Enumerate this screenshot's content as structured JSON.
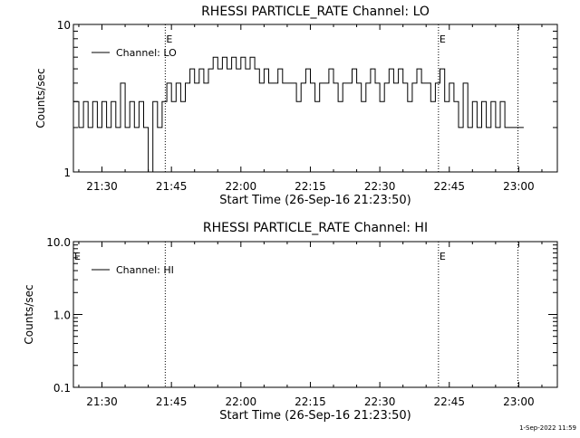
{
  "footer": {
    "timestamp": "1-Sep-2022 11:59"
  },
  "chart_data": [
    {
      "type": "line",
      "title": "RHESSI PARTICLE_RATE Channel: LO",
      "xlabel": "Start Time (26-Sep-16 21:23:50)",
      "ylabel": "Counts/sec",
      "yscale": "log",
      "ylim": [
        1,
        10
      ],
      "ytick_labels": [
        "1",
        "10"
      ],
      "xlim": [
        "21:23:50",
        "23:08:20"
      ],
      "xtick_labels": [
        "21:30",
        "21:45",
        "22:00",
        "22:15",
        "22:30",
        "22:45",
        "23:00"
      ],
      "legend_label": "Channel: LO",
      "grid": false,
      "event_markers": [
        {
          "time": "21:43:40",
          "label": "E"
        },
        {
          "time": "22:42:40",
          "label": "E"
        },
        {
          "time": "22:59:50",
          "label": ""
        }
      ],
      "series": [
        {
          "points": [
            [
              "21:23:50",
              3
            ],
            [
              "21:25:00",
              2
            ],
            [
              "21:26:00",
              3
            ],
            [
              "21:27:00",
              2
            ],
            [
              "21:28:00",
              3
            ],
            [
              "21:29:00",
              2
            ],
            [
              "21:30:00",
              3
            ],
            [
              "21:31:00",
              2
            ],
            [
              "21:32:00",
              3
            ],
            [
              "21:33:00",
              2
            ],
            [
              "21:34:00",
              4
            ],
            [
              "21:35:00",
              2
            ],
            [
              "21:36:00",
              3
            ],
            [
              "21:37:00",
              2
            ],
            [
              "21:38:00",
              3
            ],
            [
              "21:39:00",
              2
            ],
            [
              "21:40:00",
              1
            ],
            [
              "21:41:00",
              3
            ],
            [
              "21:42:00",
              2
            ],
            [
              "21:43:00",
              3
            ],
            [
              "21:44:00",
              4
            ],
            [
              "21:45:00",
              3
            ],
            [
              "21:46:00",
              4
            ],
            [
              "21:47:00",
              3
            ],
            [
              "21:48:00",
              4
            ],
            [
              "21:49:00",
              5
            ],
            [
              "21:50:00",
              4
            ],
            [
              "21:51:00",
              5
            ],
            [
              "21:52:00",
              4
            ],
            [
              "21:53:00",
              5
            ],
            [
              "21:54:00",
              6
            ],
            [
              "21:55:00",
              5
            ],
            [
              "21:56:00",
              6
            ],
            [
              "21:57:00",
              5
            ],
            [
              "21:58:00",
              6
            ],
            [
              "21:59:00",
              5
            ],
            [
              "22:00:00",
              6
            ],
            [
              "22:01:00",
              5
            ],
            [
              "22:02:00",
              6
            ],
            [
              "22:03:00",
              5
            ],
            [
              "22:04:00",
              4
            ],
            [
              "22:05:00",
              5
            ],
            [
              "22:06:00",
              4
            ],
            [
              "22:07:00",
              4
            ],
            [
              "22:08:00",
              5
            ],
            [
              "22:09:00",
              4
            ],
            [
              "22:10:00",
              4
            ],
            [
              "22:11:00",
              4
            ],
            [
              "22:12:00",
              3
            ],
            [
              "22:13:00",
              4
            ],
            [
              "22:14:00",
              5
            ],
            [
              "22:15:00",
              4
            ],
            [
              "22:16:00",
              3
            ],
            [
              "22:17:00",
              4
            ],
            [
              "22:18:00",
              4
            ],
            [
              "22:19:00",
              5
            ],
            [
              "22:20:00",
              4
            ],
            [
              "22:21:00",
              3
            ],
            [
              "22:22:00",
              4
            ],
            [
              "22:23:00",
              4
            ],
            [
              "22:24:00",
              5
            ],
            [
              "22:25:00",
              4
            ],
            [
              "22:26:00",
              3
            ],
            [
              "22:27:00",
              4
            ],
            [
              "22:28:00",
              5
            ],
            [
              "22:29:00",
              4
            ],
            [
              "22:30:00",
              3
            ],
            [
              "22:31:00",
              4
            ],
            [
              "22:32:00",
              5
            ],
            [
              "22:33:00",
              4
            ],
            [
              "22:34:00",
              5
            ],
            [
              "22:35:00",
              4
            ],
            [
              "22:36:00",
              3
            ],
            [
              "22:37:00",
              4
            ],
            [
              "22:38:00",
              5
            ],
            [
              "22:39:00",
              4
            ],
            [
              "22:40:00",
              4
            ],
            [
              "22:41:00",
              3
            ],
            [
              "22:42:00",
              4
            ],
            [
              "22:43:00",
              5
            ],
            [
              "22:44:00",
              3
            ],
            [
              "22:45:00",
              4
            ],
            [
              "22:46:00",
              3
            ],
            [
              "22:47:00",
              2
            ],
            [
              "22:48:00",
              4
            ],
            [
              "22:49:00",
              2
            ],
            [
              "22:50:00",
              3
            ],
            [
              "22:51:00",
              2
            ],
            [
              "22:52:00",
              3
            ],
            [
              "22:53:00",
              2
            ],
            [
              "22:54:00",
              3
            ],
            [
              "22:55:00",
              2
            ],
            [
              "22:56:00",
              3
            ],
            [
              "22:57:00",
              2
            ],
            [
              "22:58:00",
              2
            ],
            [
              "22:59:30",
              2
            ]
          ]
        }
      ]
    },
    {
      "type": "line",
      "title": "RHESSI PARTICLE_RATE Channel: HI",
      "xlabel": "Start Time (26-Sep-16 21:23:50)",
      "ylabel": "Counts/sec",
      "yscale": "log",
      "ylim": [
        0.1,
        10
      ],
      "ytick_labels": [
        "0.1",
        "1.0",
        "10.0"
      ],
      "xlim": [
        "21:23:50",
        "23:08:20"
      ],
      "xtick_labels": [
        "21:30",
        "21:45",
        "22:00",
        "22:15",
        "22:30",
        "22:45",
        "23:00"
      ],
      "legend_label": "Channel: HI",
      "grid": false,
      "event_markers": [
        {
          "time": "21:23:50",
          "label": "E"
        },
        {
          "time": "21:43:40",
          "label": ""
        },
        {
          "time": "22:42:40",
          "label": "E"
        },
        {
          "time": "22:59:50",
          "label": ""
        }
      ],
      "series": [
        {
          "points": []
        }
      ]
    }
  ]
}
